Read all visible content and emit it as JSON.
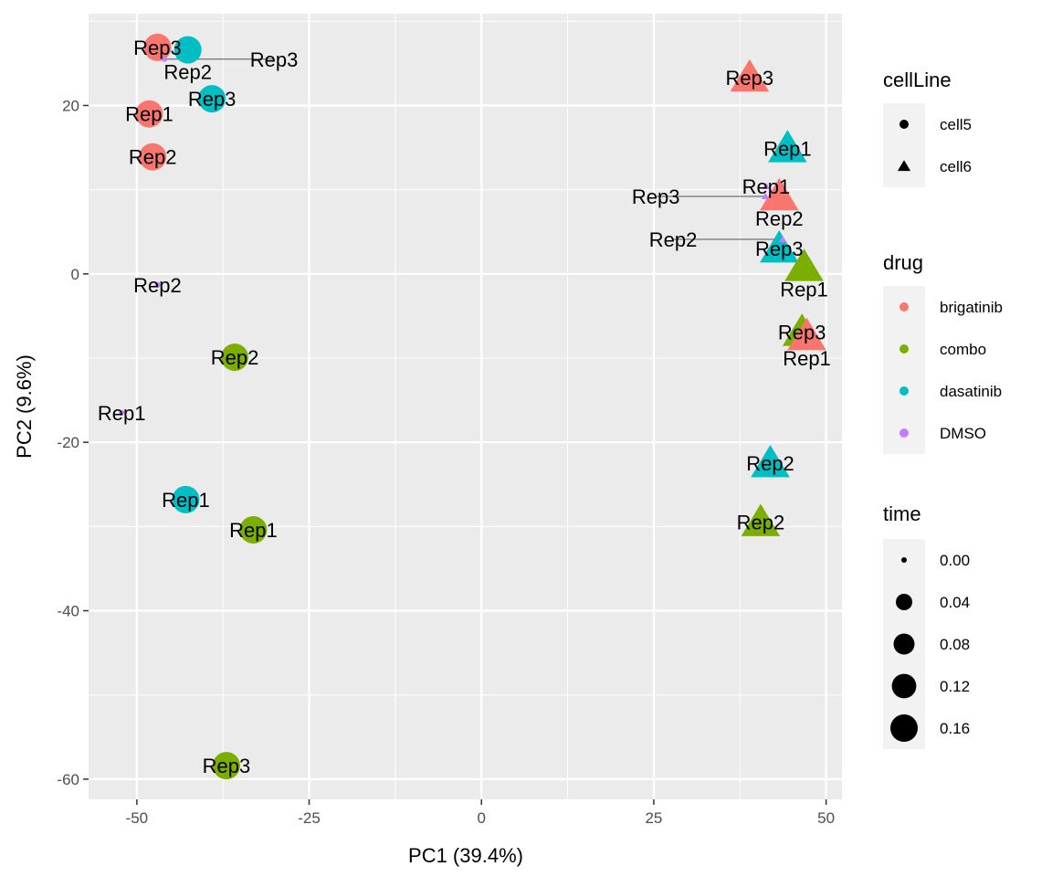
{
  "chart_data": {
    "type": "scatter",
    "xlabel": "PC1 (39.4%)",
    "ylabel": "PC2 (9.6%)",
    "xlim": [
      -57,
      52.3
    ],
    "ylim": [
      -62.4,
      30.9
    ],
    "xticks": [
      -50,
      -25,
      0,
      25,
      50
    ],
    "yticks": [
      -60,
      -40,
      -20,
      0,
      20
    ],
    "grid": true,
    "legend_placement": "right",
    "legends": {
      "cellLine": {
        "title": "cellLine",
        "entries": [
          {
            "label": "cell5",
            "shape": "circle"
          },
          {
            "label": "cell6",
            "shape": "triangle"
          }
        ]
      },
      "drug": {
        "title": "drug",
        "entries": [
          {
            "label": "brigatinib",
            "color": "#F8766D"
          },
          {
            "label": "combo",
            "color": "#7CAE00"
          },
          {
            "label": "dasatinib",
            "color": "#00BFC4"
          },
          {
            "label": "DMSO",
            "color": "#C77CFF"
          }
        ]
      },
      "time": {
        "title": "time",
        "entries": [
          "0.00",
          "0.04",
          "0.08",
          "0.12",
          "0.16"
        ]
      }
    },
    "points": [
      {
        "x": -47.0,
        "y": 26.9,
        "label": "Rep3",
        "drug": "brigatinib",
        "cellLine": "cell5",
        "time": 0.16
      },
      {
        "x": -42.6,
        "y": 26.6,
        "label": "Rep2",
        "drug": "dasatinib",
        "cellLine": "cell5",
        "time": 0.16
      },
      {
        "x": -46.0,
        "y": 25.5,
        "label": "Rep3",
        "drug": "DMSO",
        "cellLine": "cell5",
        "time": 0
      },
      {
        "x": -48.2,
        "y": 19.0,
        "label": "Rep1",
        "drug": "brigatinib",
        "cellLine": "cell5",
        "time": 0.16
      },
      {
        "x": -47.7,
        "y": 13.9,
        "label": "Rep2",
        "drug": "brigatinib",
        "cellLine": "cell5",
        "time": 0.16
      },
      {
        "x": -39.1,
        "y": 20.8,
        "label": "Rep3",
        "drug": "dasatinib",
        "cellLine": "cell5",
        "time": 0.16
      },
      {
        "x": -47.0,
        "y": -1.3,
        "label": "Rep2",
        "drug": "DMSO",
        "cellLine": "cell5",
        "time": 0
      },
      {
        "x": -35.8,
        "y": -9.9,
        "label": "Rep2",
        "drug": "combo",
        "cellLine": "cell5",
        "time": 0.16
      },
      {
        "x": -52.2,
        "y": -16.5,
        "label": "Rep1",
        "drug": "DMSO",
        "cellLine": "cell5",
        "time": 0
      },
      {
        "x": -42.9,
        "y": -26.8,
        "label": "Rep1",
        "drug": "dasatinib",
        "cellLine": "cell5",
        "time": 0.16
      },
      {
        "x": -33.1,
        "y": -30.4,
        "label": "Rep1",
        "drug": "combo",
        "cellLine": "cell5",
        "time": 0.16
      },
      {
        "x": -37.0,
        "y": -58.4,
        "label": "Rep3",
        "drug": "combo",
        "cellLine": "cell5",
        "time": 0.16
      },
      {
        "x": 38.9,
        "y": 23.3,
        "label": "Rep3",
        "drug": "brigatinib",
        "cellLine": "cell6",
        "time": 0.16
      },
      {
        "x": 44.4,
        "y": 14.9,
        "label": "Rep1",
        "drug": "dasatinib",
        "cellLine": "cell6",
        "time": 0.16
      },
      {
        "x": 41.3,
        "y": 10.4,
        "label": "Rep1",
        "drug": "DMSO",
        "cellLine": "cell6",
        "time": 0
      },
      {
        "x": 43.2,
        "y": 9.2,
        "label": "Rep2",
        "drug": "brigatinib",
        "cellLine": "cell6",
        "time": 0.16
      },
      {
        "x": 41.2,
        "y": 9.2,
        "label": "Rep3",
        "drug": "DMSO",
        "cellLine": "cell6",
        "time": 0
      },
      {
        "x": 43.2,
        "y": 3.0,
        "label": "Rep3",
        "drug": "dasatinib",
        "cellLine": "cell6",
        "time": 0.16
      },
      {
        "x": 43.7,
        "y": 4.1,
        "label": "Rep2",
        "drug": "DMSO",
        "cellLine": "cell6",
        "time": 0
      },
      {
        "x": 46.8,
        "y": 0.8,
        "label": "Rep1",
        "drug": "combo",
        "cellLine": "cell6",
        "time": 0.16
      },
      {
        "x": 46.5,
        "y": -6.9,
        "label": "Rep3",
        "drug": "combo",
        "cellLine": "cell6",
        "time": 0.16
      },
      {
        "x": 47.2,
        "y": -7.4,
        "label": "Rep1",
        "drug": "brigatinib",
        "cellLine": "cell6",
        "time": 0.16
      },
      {
        "x": 41.9,
        "y": -22.5,
        "label": "Rep2",
        "drug": "dasatinib",
        "cellLine": "cell6",
        "time": 0.16
      },
      {
        "x": 40.5,
        "y": -29.5,
        "label": "Rep2",
        "drug": "combo",
        "cellLine": "cell6",
        "time": 0.16
      }
    ]
  }
}
